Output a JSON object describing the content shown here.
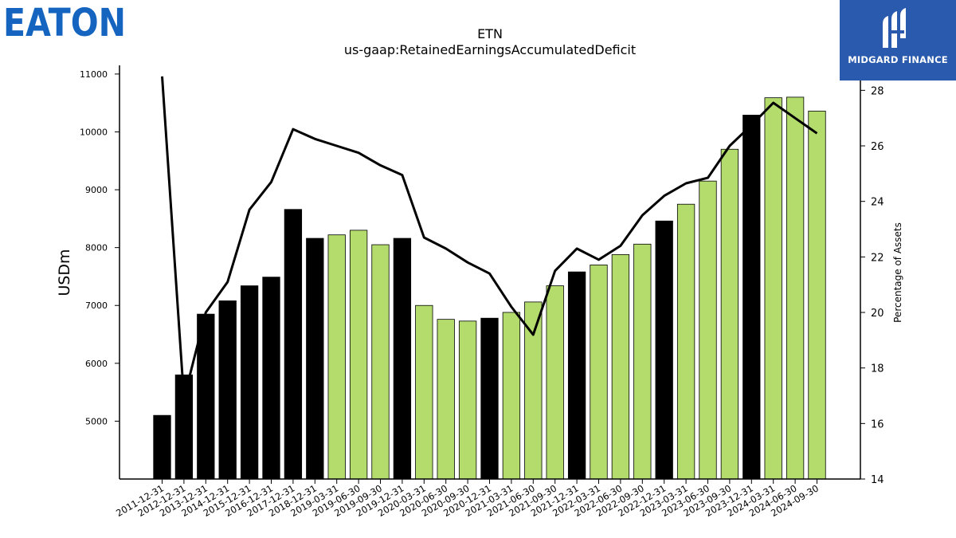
{
  "brand": {
    "company_logo_text": "EATON",
    "company_logo_color": "#1565c0",
    "watermark_text": "MIDGARD FINANCE",
    "watermark_bg": "#2a5aad"
  },
  "chart_data": {
    "type": "bar",
    "title": "ETN",
    "subtitle": "us-gaap:RetainedEarningsAccumulatedDeficit",
    "ylabel": "USDm",
    "y2label": "Percentage of Assets",
    "ylim": [
      4000,
      11150
    ],
    "y2lim": [
      14,
      28.9
    ],
    "yticks": [
      5000,
      6000,
      7000,
      8000,
      9000,
      10000,
      11000
    ],
    "y2ticks": [
      14,
      16,
      18,
      20,
      22,
      24,
      26,
      28
    ],
    "colors": {
      "annual": "#000000",
      "quarterly": "#b3dc6c",
      "line": "#000000"
    },
    "categories": [
      "2011-12-31",
      "2012-12-31",
      "2013-12-31",
      "2014-12-31",
      "2015-12-31",
      "2016-12-31",
      "2017-12-31",
      "2018-12-31",
      "2019-03-31",
      "2019-06-30",
      "2019-09-30",
      "2019-12-31",
      "2020-03-31",
      "2020-06-30",
      "2020-09-30",
      "2020-12-31",
      "2021-03-31",
      "2021-06-30",
      "2021-09-30",
      "2021-12-31",
      "2022-03-31",
      "2022-06-30",
      "2022-09-30",
      "2022-12-31",
      "2023-03-31",
      "2023-06-30",
      "2023-09-30",
      "2023-12-31",
      "2024-03-31",
      "2024-06-30",
      "2024-09-30"
    ],
    "period_type": [
      "annual",
      "annual",
      "annual",
      "annual",
      "annual",
      "annual",
      "annual",
      "annual",
      "quarterly",
      "quarterly",
      "quarterly",
      "annual",
      "quarterly",
      "quarterly",
      "quarterly",
      "annual",
      "quarterly",
      "quarterly",
      "quarterly",
      "annual",
      "quarterly",
      "quarterly",
      "quarterly",
      "annual",
      "quarterly",
      "quarterly",
      "quarterly",
      "annual",
      "quarterly",
      "quarterly",
      "quarterly"
    ],
    "series": [
      {
        "values": [
          5100,
          5800,
          6850,
          7080,
          7340,
          7490,
          8660,
          8160,
          8220,
          8300,
          8050,
          8160,
          7000,
          6760,
          6730,
          6780,
          6880,
          7060,
          7340,
          7580,
          7700,
          7880,
          8060,
          8460,
          8750,
          9150,
          9700,
          10290,
          10590,
          10600,
          10360
        ]
      },
      {
        "axis": "right",
        "values": [
          28.5,
          16.9,
          20.0,
          21.1,
          23.7,
          24.7,
          26.6,
          26.25,
          26.0,
          25.75,
          25.3,
          24.95,
          22.7,
          22.3,
          21.8,
          21.4,
          20.2,
          19.2,
          21.5,
          22.3,
          21.9,
          22.4,
          23.5,
          24.2,
          24.65,
          24.85,
          26.0,
          26.75,
          27.55,
          27.0,
          26.45
        ]
      }
    ]
  }
}
